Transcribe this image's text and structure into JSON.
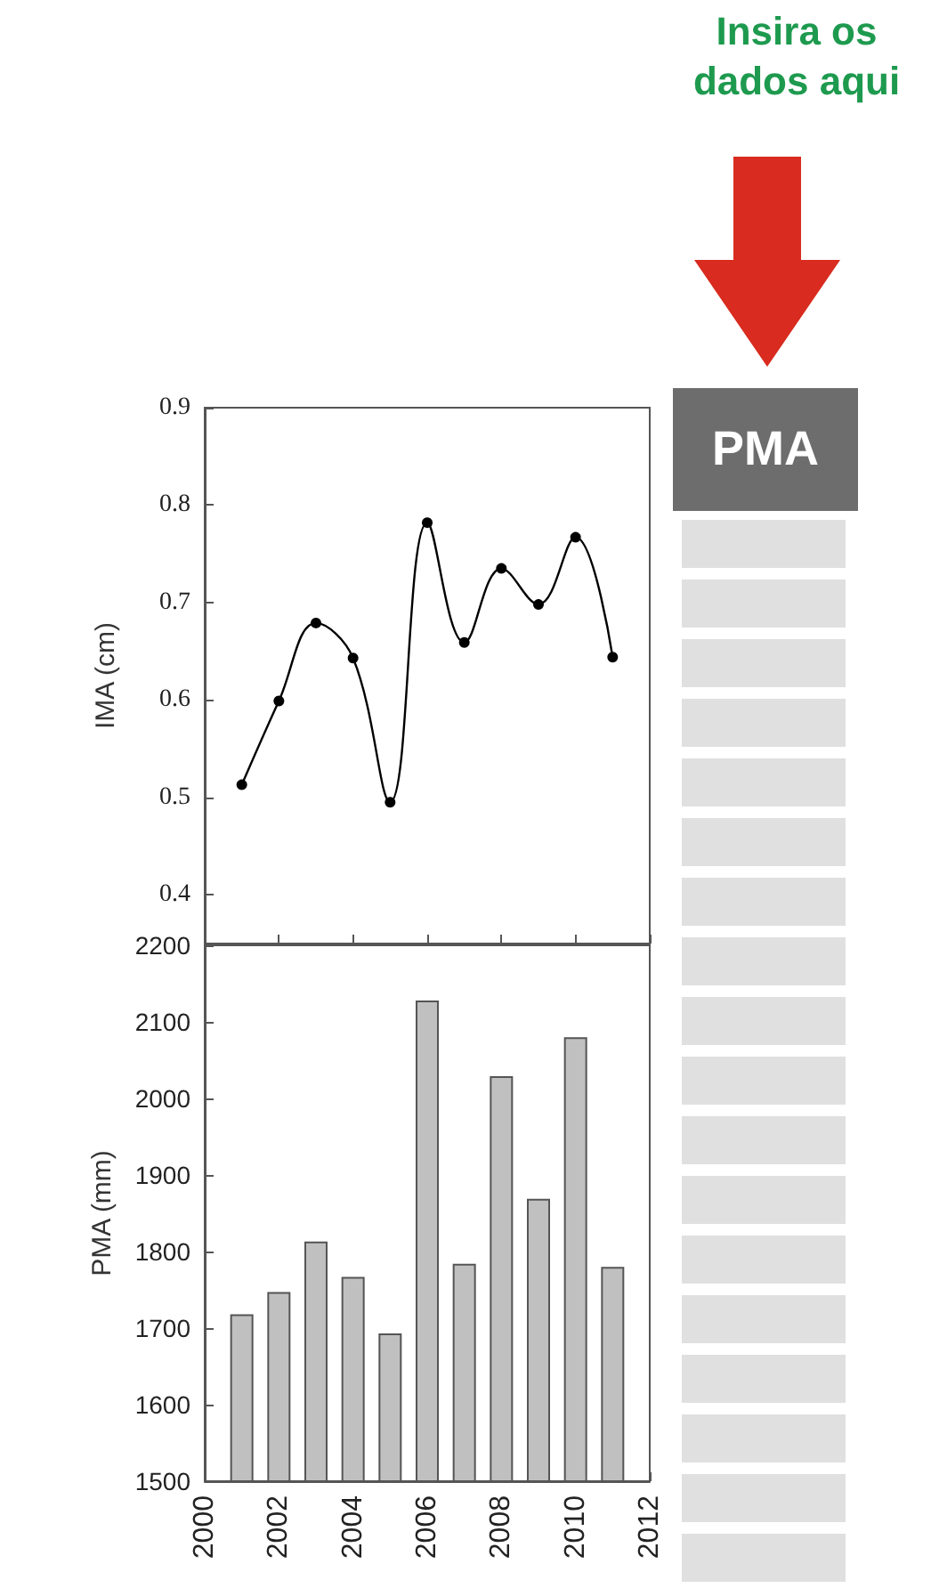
{
  "chart_data": [
    {
      "type": "line",
      "ylabel": "IMA (cm)",
      "x": [
        2001,
        2002,
        2003,
        2004,
        2005,
        2006,
        2007,
        2008,
        2009,
        2010,
        2011
      ],
      "series": [
        {
          "color": "#000000",
          "values": [
            0.513,
            0.599,
            0.679,
            0.643,
            0.495,
            0.782,
            0.659,
            0.735,
            0.698,
            0.767,
            0.644
          ]
        }
      ],
      "xlim": [
        2000,
        2012
      ],
      "xticks": [
        2000,
        2002,
        2004,
        2006,
        2008,
        2010,
        2012
      ],
      "ylim": [
        0.35,
        0.9
      ],
      "yticks": [
        0.4,
        0.5,
        0.6,
        0.7,
        0.8,
        0.9
      ],
      "tick_labels": "y",
      "marker": "circle",
      "line_style": "solid"
    },
    {
      "type": "bar",
      "ylabel": "PMA (mm)",
      "x": [
        2001,
        2002,
        2003,
        2004,
        2005,
        2006,
        2007,
        2008,
        2009,
        2010,
        2011
      ],
      "series": [
        {
          "color": "#c0c0c0",
          "values": [
            1718,
            1747,
            1813,
            1767,
            1693,
            2128,
            1784,
            2029,
            1869,
            2080,
            1780
          ]
        }
      ],
      "xlim": [
        2000,
        2012
      ],
      "xticks": [
        2000,
        2002,
        2004,
        2006,
        2008,
        2010,
        2012
      ],
      "ylim": [
        1500,
        2200
      ],
      "yticks": [
        1500,
        1600,
        1700,
        1800,
        1900,
        2000,
        2100,
        2200
      ]
    },
    {
      "type": "other",
      "title": "Insira os dados aqui",
      "annotations": [
        "PMA"
      ]
    }
  ]
}
